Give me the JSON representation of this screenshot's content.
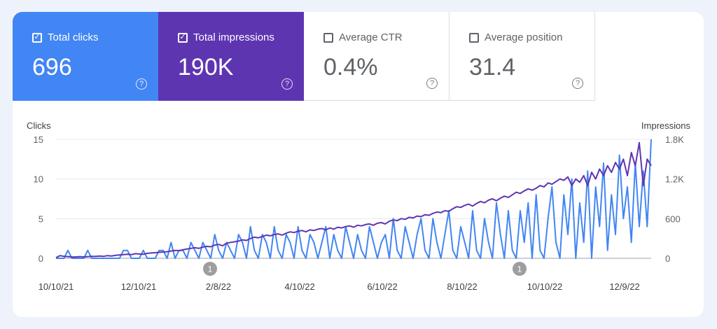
{
  "metrics": [
    {
      "label": "Total clicks",
      "value": "696",
      "checked": true,
      "check_icon": "checkbox-checked-icon",
      "help_icon": "help-icon",
      "color": "#4285f4"
    },
    {
      "label": "Total impressions",
      "value": "190K",
      "checked": true,
      "check_icon": "checkbox-checked-icon",
      "help_icon": "help-icon",
      "color": "#5e35b1"
    },
    {
      "label": "Average CTR",
      "value": "0.4%",
      "checked": false,
      "check_icon": "checkbox-unchecked-icon",
      "help_icon": "help-icon",
      "color": "#5f6368"
    },
    {
      "label": "Average position",
      "value": "31.4",
      "checked": false,
      "check_icon": "checkbox-unchecked-icon",
      "help_icon": "help-icon",
      "color": "#5f6368"
    }
  ],
  "chart_data": {
    "type": "line",
    "ylabel": "Clicks",
    "ylabel_right": "Impressions",
    "ylim": [
      0,
      15
    ],
    "ylim_right": [
      0,
      1800
    ],
    "yticks_left": [
      "0",
      "5",
      "10",
      "15"
    ],
    "yticks_right": [
      "0",
      "600",
      "1.2K",
      "1.8K"
    ],
    "x_ticks": [
      "10/10/21",
      "12/10/21",
      "2/8/22",
      "4/10/22",
      "6/10/22",
      "8/10/22",
      "10/10/22",
      "12/9/22"
    ],
    "grid": true,
    "annotations": [
      {
        "label": "1",
        "x": "2/8/22"
      },
      {
        "label": "1",
        "x": "9/20/22"
      }
    ],
    "series": [
      {
        "name": "Clicks",
        "axis": "left",
        "color": "#4285f4",
        "values": [
          0,
          0,
          0,
          1,
          0,
          0,
          0,
          0,
          1,
          0,
          0,
          0,
          0,
          0,
          0,
          0,
          0,
          1,
          1,
          0,
          0,
          0,
          1,
          0,
          0,
          0,
          1,
          1,
          0,
          2,
          0,
          1,
          1,
          0,
          2,
          1,
          0,
          2,
          1,
          0,
          3,
          1,
          0,
          2,
          1,
          0,
          3,
          2,
          0,
          4,
          1,
          0,
          3,
          2,
          0,
          4,
          1,
          0,
          3,
          2,
          0,
          4,
          1,
          0,
          3,
          2,
          0,
          2,
          4,
          0,
          3,
          1,
          0,
          4,
          2,
          0,
          3,
          1,
          0,
          4,
          2,
          0,
          2,
          3,
          0,
          5,
          1,
          0,
          4,
          2,
          0,
          3,
          5,
          1,
          0,
          5,
          2,
          0,
          3,
          6,
          1,
          0,
          4,
          2,
          0,
          6,
          1,
          0,
          5,
          2,
          0,
          7,
          3,
          0,
          6,
          1,
          0,
          6,
          2,
          7,
          0,
          8,
          1,
          0,
          5,
          9,
          2,
          0,
          8,
          3,
          10,
          0,
          7,
          2,
          11,
          0,
          9,
          4,
          12,
          1,
          8,
          3,
          13,
          5,
          9,
          2,
          12,
          4,
          11,
          4,
          15
        ]
      },
      {
        "name": "Impressions",
        "axis": "right",
        "color": "#5e35b1",
        "values": [
          10,
          40,
          30,
          25,
          20,
          20,
          25,
          20,
          25,
          30,
          30,
          35,
          30,
          40,
          35,
          45,
          50,
          55,
          60,
          55,
          70,
          65,
          60,
          75,
          80,
          85,
          90,
          95,
          100,
          110,
          120,
          115,
          130,
          140,
          150,
          160,
          150,
          170,
          180,
          175,
          200,
          210,
          190,
          230,
          240,
          250,
          260,
          280,
          270,
          300,
          320,
          310,
          330,
          350,
          340,
          360,
          370,
          350,
          380,
          400,
          390,
          410,
          420,
          400,
          430,
          420,
          440,
          450,
          430,
          460,
          440,
          470,
          460,
          480,
          490,
          470,
          500,
          490,
          510,
          520,
          500,
          530,
          540,
          520,
          560,
          580,
          570,
          600,
          590,
          620,
          610,
          640,
          630,
          660,
          650,
          680,
          700,
          690,
          720,
          710,
          750,
          780,
          770,
          800,
          820,
          790,
          830,
          860,
          840,
          880,
          900,
          870,
          910,
          940,
          920,
          960,
          1000,
          980,
          1020,
          1050,
          1030,
          1060,
          1100,
          1080,
          1140,
          1120,
          1160,
          1200,
          1180,
          1230,
          1100,
          1200,
          1150,
          1250,
          1100,
          1300,
          1200,
          1350,
          1250,
          1400,
          1300,
          1450,
          1350,
          1500,
          1250,
          1600,
          1400,
          1750,
          1100,
          1500,
          1400
        ]
      }
    ]
  }
}
